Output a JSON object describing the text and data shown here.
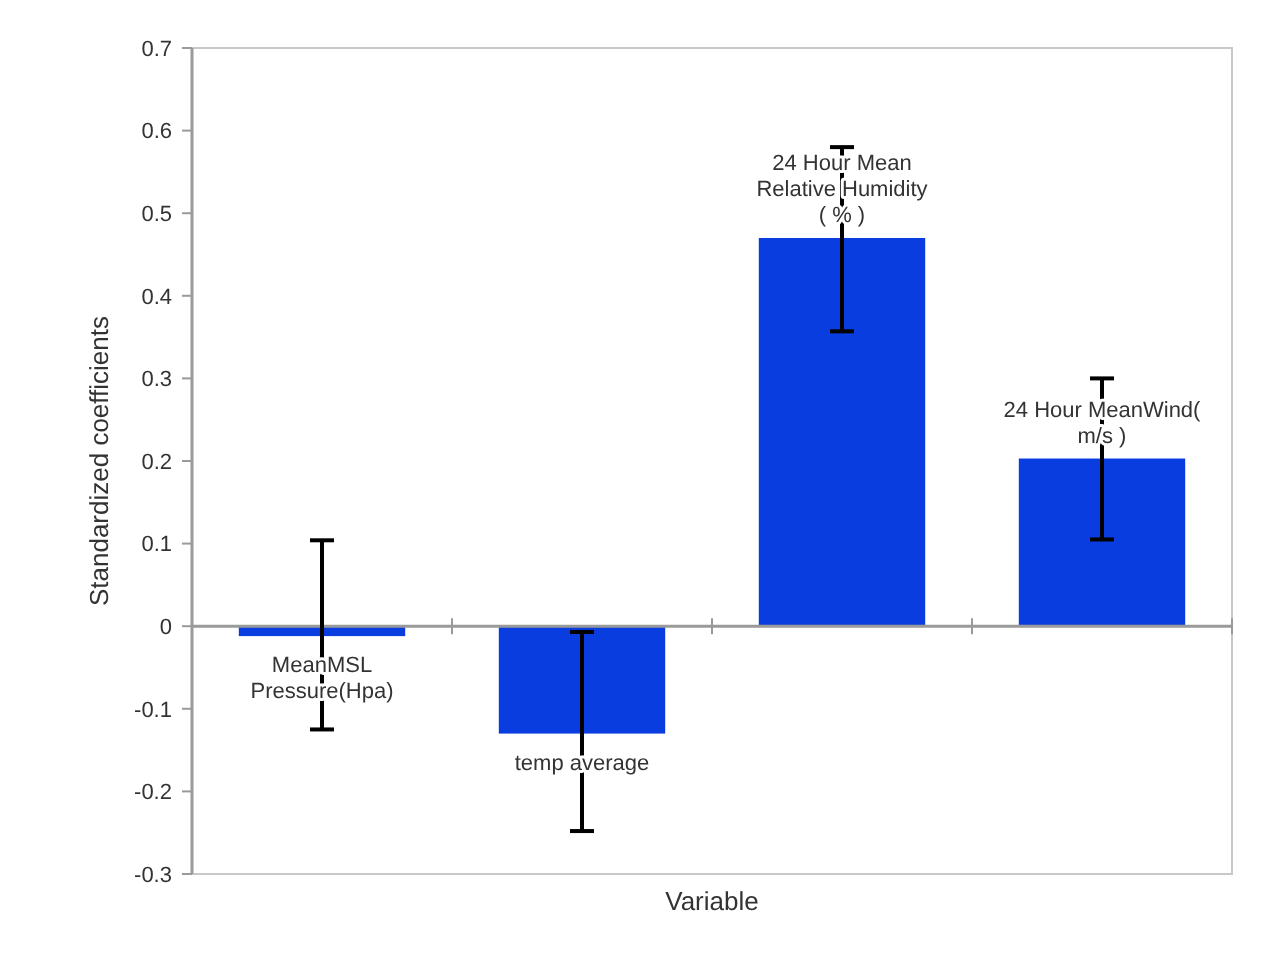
{
  "chart_data": {
    "type": "bar",
    "xlabel": "Variable",
    "ylabel": "Standardized  coefficients",
    "categories": [
      "MeanMSL Pressure(Hpa)",
      "temp average",
      "24 Hour Mean Relative Humidity ( % )",
      "24 Hour MeanWind( m/s )"
    ],
    "series": [
      {
        "color": "#0a3de0",
        "values": [
          -0.012,
          -0.13,
          0.47,
          0.203
        ],
        "errors": [
          [
            -0.125,
            0.104
          ],
          [
            -0.248,
            -0.007
          ],
          [
            0.357,
            0.58
          ],
          [
            0.105,
            0.3
          ]
        ]
      }
    ],
    "ylim": [
      -0.3,
      0.7
    ],
    "yticks": [
      {
        "value": -0.3,
        "label": "-0.3"
      },
      {
        "value": -0.2,
        "label": "-0.2"
      },
      {
        "value": -0.1,
        "label": "-0.1"
      },
      0,
      0.1,
      0.2,
      0.3,
      0.4,
      0.5,
      0.6,
      0.7
    ],
    "tick_labels": true
  }
}
